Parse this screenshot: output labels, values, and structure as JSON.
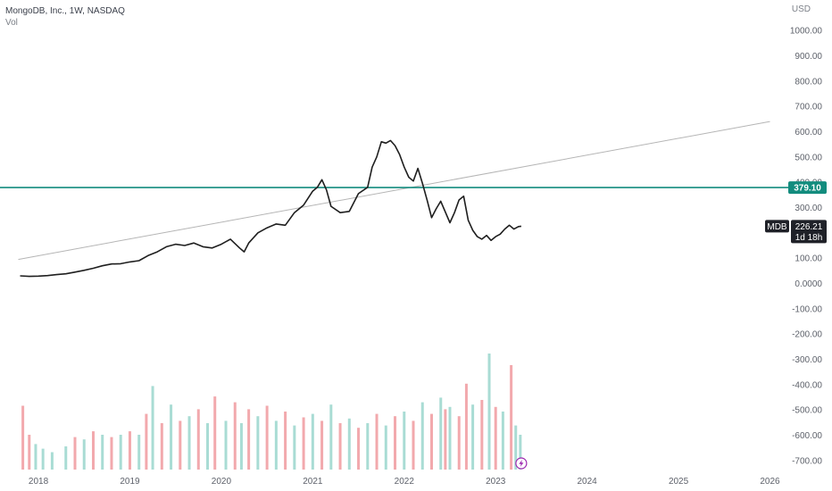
{
  "legend": {
    "title": "MongoDB, Inc., 1W, NASDAQ",
    "subtitle": "Vol"
  },
  "currency": "USD",
  "colors": {
    "price_line": "#1f1f1f",
    "trend_line": "#b5b5b5",
    "horizontal_line": "#138c7e",
    "vol_up": "#a9dcd4",
    "vol_down": "#f2a9ad",
    "axis_text": "#5d616a",
    "tag_dark": "#1f2128",
    "lightning": "#9c27b0"
  },
  "icons": [
    "lightning-icon"
  ],
  "chart_data": {
    "type": "line",
    "symbol": "MDB",
    "interval": "1W",
    "last_price": "226.21",
    "countdown": "1d 18h",
    "horizontal_level": {
      "value": 379.1,
      "label": "379.10"
    },
    "trend_line": {
      "points": [
        [
          2017.78,
          95
        ],
        [
          2026.0,
          640
        ]
      ]
    },
    "y_ticks": [
      "1000.00",
      "900.00",
      "800.00",
      "700.00",
      "600.00",
      "500.00",
      "400.00",
      "300.00",
      "200.00",
      "100.00",
      "0.0000",
      "-100.00",
      "-200.00",
      "-300.00",
      "-400.00",
      "-500.00",
      "-600.00",
      "-700.00"
    ],
    "y_tick_values": [
      1000,
      900,
      800,
      700,
      600,
      500,
      400,
      300,
      200,
      100,
      0,
      -100,
      -200,
      -300,
      -400,
      -500,
      -600,
      -700
    ],
    "ylim": [
      -750,
      1050
    ],
    "x_ticks": [
      "2018",
      "2019",
      "2020",
      "2021",
      "2022",
      "2023",
      "2024",
      "2025",
      "2026"
    ],
    "x_tick_values": [
      2018,
      2019,
      2020,
      2021,
      2022,
      2023,
      2024,
      2025,
      2026
    ],
    "xlim": [
      2017.58,
      2026.2
    ],
    "series": [
      {
        "values": [
          [
            2017.8,
            30
          ],
          [
            2017.9,
            28
          ],
          [
            2018.0,
            29
          ],
          [
            2018.1,
            31
          ],
          [
            2018.2,
            35
          ],
          [
            2018.3,
            38
          ],
          [
            2018.4,
            45
          ],
          [
            2018.5,
            52
          ],
          [
            2018.6,
            60
          ],
          [
            2018.7,
            70
          ],
          [
            2018.8,
            77
          ],
          [
            2018.9,
            78
          ],
          [
            2019.0,
            85
          ],
          [
            2019.1,
            90
          ],
          [
            2019.2,
            110
          ],
          [
            2019.3,
            125
          ],
          [
            2019.4,
            145
          ],
          [
            2019.5,
            155
          ],
          [
            2019.6,
            150
          ],
          [
            2019.7,
            160
          ],
          [
            2019.8,
            145
          ],
          [
            2019.9,
            140
          ],
          [
            2020.0,
            155
          ],
          [
            2020.1,
            175
          ],
          [
            2020.2,
            140
          ],
          [
            2020.25,
            125
          ],
          [
            2020.3,
            160
          ],
          [
            2020.4,
            200
          ],
          [
            2020.5,
            220
          ],
          [
            2020.6,
            235
          ],
          [
            2020.7,
            230
          ],
          [
            2020.8,
            280
          ],
          [
            2020.9,
            310
          ],
          [
            2021.0,
            365
          ],
          [
            2021.05,
            380
          ],
          [
            2021.1,
            410
          ],
          [
            2021.15,
            370
          ],
          [
            2021.2,
            305
          ],
          [
            2021.3,
            280
          ],
          [
            2021.4,
            285
          ],
          [
            2021.5,
            355
          ],
          [
            2021.6,
            380
          ],
          [
            2021.65,
            460
          ],
          [
            2021.7,
            500
          ],
          [
            2021.75,
            560
          ],
          [
            2021.8,
            555
          ],
          [
            2021.85,
            565
          ],
          [
            2021.9,
            545
          ],
          [
            2021.95,
            510
          ],
          [
            2022.0,
            460
          ],
          [
            2022.05,
            420
          ],
          [
            2022.1,
            405
          ],
          [
            2022.15,
            455
          ],
          [
            2022.2,
            395
          ],
          [
            2022.25,
            330
          ],
          [
            2022.3,
            260
          ],
          [
            2022.35,
            295
          ],
          [
            2022.4,
            325
          ],
          [
            2022.5,
            240
          ],
          [
            2022.55,
            280
          ],
          [
            2022.6,
            330
          ],
          [
            2022.65,
            345
          ],
          [
            2022.7,
            250
          ],
          [
            2022.75,
            210
          ],
          [
            2022.8,
            185
          ],
          [
            2022.85,
            175
          ],
          [
            2022.9,
            190
          ],
          [
            2022.95,
            170
          ],
          [
            2023.0,
            185
          ],
          [
            2023.05,
            195
          ],
          [
            2023.1,
            215
          ],
          [
            2023.15,
            230
          ],
          [
            2023.2,
            215
          ],
          [
            2023.25,
            225
          ],
          [
            2023.28,
            226.21
          ]
        ]
      }
    ],
    "volume": [
      {
        "x": 2017.83,
        "v": 0.55,
        "up": false
      },
      {
        "x": 2017.9,
        "v": 0.3,
        "up": false
      },
      {
        "x": 2017.97,
        "v": 0.22,
        "up": true
      },
      {
        "x": 2018.05,
        "v": 0.18,
        "up": true
      },
      {
        "x": 2018.15,
        "v": 0.15,
        "up": true
      },
      {
        "x": 2018.3,
        "v": 0.2,
        "up": true
      },
      {
        "x": 2018.4,
        "v": 0.28,
        "up": false
      },
      {
        "x": 2018.5,
        "v": 0.26,
        "up": true
      },
      {
        "x": 2018.6,
        "v": 0.33,
        "up": false
      },
      {
        "x": 2018.7,
        "v": 0.3,
        "up": true
      },
      {
        "x": 2018.8,
        "v": 0.28,
        "up": false
      },
      {
        "x": 2018.9,
        "v": 0.3,
        "up": true
      },
      {
        "x": 2019.0,
        "v": 0.33,
        "up": false
      },
      {
        "x": 2019.1,
        "v": 0.3,
        "up": true
      },
      {
        "x": 2019.18,
        "v": 0.48,
        "up": false
      },
      {
        "x": 2019.25,
        "v": 0.72,
        "up": true
      },
      {
        "x": 2019.35,
        "v": 0.4,
        "up": false
      },
      {
        "x": 2019.45,
        "v": 0.56,
        "up": true
      },
      {
        "x": 2019.55,
        "v": 0.42,
        "up": false
      },
      {
        "x": 2019.65,
        "v": 0.46,
        "up": true
      },
      {
        "x": 2019.75,
        "v": 0.52,
        "up": false
      },
      {
        "x": 2019.85,
        "v": 0.4,
        "up": true
      },
      {
        "x": 2019.93,
        "v": 0.63,
        "up": false
      },
      {
        "x": 2020.05,
        "v": 0.42,
        "up": true
      },
      {
        "x": 2020.15,
        "v": 0.58,
        "up": false
      },
      {
        "x": 2020.22,
        "v": 0.4,
        "up": true
      },
      {
        "x": 2020.3,
        "v": 0.52,
        "up": false
      },
      {
        "x": 2020.4,
        "v": 0.46,
        "up": true
      },
      {
        "x": 2020.5,
        "v": 0.55,
        "up": false
      },
      {
        "x": 2020.6,
        "v": 0.42,
        "up": true
      },
      {
        "x": 2020.7,
        "v": 0.5,
        "up": false
      },
      {
        "x": 2020.8,
        "v": 0.38,
        "up": true
      },
      {
        "x": 2020.9,
        "v": 0.45,
        "up": false
      },
      {
        "x": 2021.0,
        "v": 0.48,
        "up": true
      },
      {
        "x": 2021.1,
        "v": 0.42,
        "up": false
      },
      {
        "x": 2021.2,
        "v": 0.56,
        "up": true
      },
      {
        "x": 2021.3,
        "v": 0.4,
        "up": false
      },
      {
        "x": 2021.4,
        "v": 0.44,
        "up": true
      },
      {
        "x": 2021.5,
        "v": 0.36,
        "up": false
      },
      {
        "x": 2021.6,
        "v": 0.4,
        "up": true
      },
      {
        "x": 2021.7,
        "v": 0.48,
        "up": false
      },
      {
        "x": 2021.8,
        "v": 0.38,
        "up": true
      },
      {
        "x": 2021.9,
        "v": 0.46,
        "up": false
      },
      {
        "x": 2022.0,
        "v": 0.5,
        "up": true
      },
      {
        "x": 2022.1,
        "v": 0.42,
        "up": false
      },
      {
        "x": 2022.2,
        "v": 0.58,
        "up": true
      },
      {
        "x": 2022.3,
        "v": 0.48,
        "up": false
      },
      {
        "x": 2022.4,
        "v": 0.62,
        "up": true
      },
      {
        "x": 2022.45,
        "v": 0.52,
        "up": false
      },
      {
        "x": 2022.5,
        "v": 0.54,
        "up": true
      },
      {
        "x": 2022.6,
        "v": 0.46,
        "up": false
      },
      {
        "x": 2022.68,
        "v": 0.74,
        "up": false
      },
      {
        "x": 2022.75,
        "v": 0.56,
        "up": true
      },
      {
        "x": 2022.85,
        "v": 0.6,
        "up": false
      },
      {
        "x": 2022.93,
        "v": 1.0,
        "up": true
      },
      {
        "x": 2023.0,
        "v": 0.54,
        "up": false
      },
      {
        "x": 2023.08,
        "v": 0.5,
        "up": true
      },
      {
        "x": 2023.17,
        "v": 0.9,
        "up": false
      },
      {
        "x": 2023.22,
        "v": 0.38,
        "up": true
      },
      {
        "x": 2023.27,
        "v": 0.3,
        "up": true
      }
    ]
  }
}
